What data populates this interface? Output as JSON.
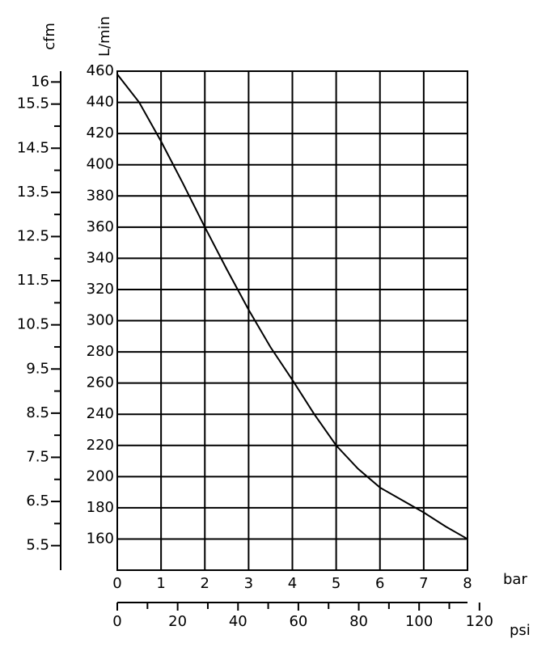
{
  "chart_data": {
    "type": "line",
    "ylabel": "L/min",
    "y2label": "cfm",
    "xlabel": "bar",
    "x2label": "psi",
    "x": [
      0,
      0.5,
      1,
      1.5,
      2,
      2.5,
      3,
      3.5,
      4,
      4.5,
      5,
      5.5,
      6,
      6.5,
      7,
      7.5,
      8
    ],
    "series": [
      {
        "color": "#000000",
        "values": [
          458,
          440,
          415,
          388,
          360,
          333,
          307,
          283,
          262,
          240,
          220,
          205,
          193,
          185,
          177,
          168,
          160
        ]
      }
    ],
    "xlim": [
      0,
      8
    ],
    "xticks": [
      0,
      1,
      2,
      3,
      4,
      5,
      6,
      7,
      8
    ],
    "x2lim": [
      0,
      116.03
    ],
    "x2ticks": [
      0,
      20,
      40,
      60,
      80,
      100,
      120
    ],
    "x2minor_ticks": [
      10,
      30,
      50,
      70,
      90,
      110
    ],
    "ylim": [
      140,
      460
    ],
    "yticks": [
      160,
      180,
      200,
      220,
      240,
      260,
      280,
      300,
      320,
      340,
      360,
      380,
      400,
      420,
      440,
      460
    ],
    "y2lim": [
      4.944,
      16.245
    ],
    "y2ticks": [
      5.5,
      6.5,
      7.5,
      8.5,
      9.5,
      10.5,
      11.5,
      12.5,
      13.5,
      14.5,
      15.5,
      16
    ],
    "y2minor_ticks": [
      6,
      7,
      8,
      9,
      10,
      11,
      12,
      13,
      14,
      15
    ],
    "grid": true
  }
}
